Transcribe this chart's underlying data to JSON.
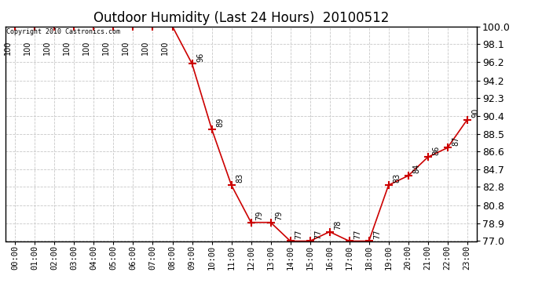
{
  "title": "Outdoor Humidity (Last 24 Hours)  20100512",
  "copyright": "Copyright 2010 Castronics.com",
  "x_labels": [
    "00:00",
    "01:00",
    "02:00",
    "03:00",
    "04:00",
    "05:00",
    "06:00",
    "07:00",
    "08:00",
    "09:00",
    "10:00",
    "11:00",
    "12:00",
    "13:00",
    "14:00",
    "15:00",
    "16:00",
    "17:00",
    "18:00",
    "19:00",
    "20:00",
    "21:00",
    "22:00",
    "23:00"
  ],
  "y_values": [
    100,
    100,
    100,
    100,
    100,
    100,
    100,
    100,
    100,
    96,
    89,
    83,
    79,
    79,
    77,
    77,
    78,
    77,
    77,
    83,
    84,
    86,
    87,
    90
  ],
  "ylim_min": 77.0,
  "ylim_max": 100.0,
  "y_ticks": [
    77.0,
    78.9,
    80.8,
    82.8,
    84.7,
    86.6,
    88.5,
    90.4,
    92.3,
    94.2,
    96.2,
    98.1,
    100.0
  ],
  "line_color": "#cc0000",
  "marker": "+",
  "marker_color": "#cc0000",
  "bg_color": "#ffffff",
  "grid_color": "#c8c8c8",
  "title_fontsize": 12,
  "label_fontsize": 7.5,
  "annotation_fontsize": 7,
  "ytick_fontsize": 9,
  "copyright_text": "Copyright 2010 Castronics.com",
  "annotations": {
    "0": {
      "val": 100,
      "xoff": -3,
      "yoff": -13,
      "rot": 90,
      "ha": "right",
      "va": "top"
    },
    "1": {
      "val": 100,
      "xoff": -3,
      "yoff": -13,
      "rot": 90,
      "ha": "right",
      "va": "top"
    },
    "2": {
      "val": 100,
      "xoff": -3,
      "yoff": -13,
      "rot": 90,
      "ha": "right",
      "va": "top"
    },
    "3": {
      "val": 100,
      "xoff": -3,
      "yoff": -13,
      "rot": 90,
      "ha": "right",
      "va": "top"
    },
    "4": {
      "val": 100,
      "xoff": -3,
      "yoff": -13,
      "rot": 90,
      "ha": "right",
      "va": "top"
    },
    "5": {
      "val": 100,
      "xoff": -3,
      "yoff": -13,
      "rot": 90,
      "ha": "right",
      "va": "top"
    },
    "6": {
      "val": 100,
      "xoff": -3,
      "yoff": -13,
      "rot": 90,
      "ha": "right",
      "va": "top"
    },
    "7": {
      "val": 100,
      "xoff": -3,
      "yoff": -13,
      "rot": 90,
      "ha": "right",
      "va": "top"
    },
    "8": {
      "val": 100,
      "xoff": -3,
      "yoff": -13,
      "rot": 90,
      "ha": "right",
      "va": "top"
    },
    "9": {
      "val": 96,
      "xoff": 4,
      "yoff": 2,
      "rot": 90,
      "ha": "left",
      "va": "bottom"
    },
    "10": {
      "val": 89,
      "xoff": 4,
      "yoff": 2,
      "rot": 90,
      "ha": "left",
      "va": "bottom"
    },
    "11": {
      "val": 83,
      "xoff": 4,
      "yoff": 2,
      "rot": 90,
      "ha": "left",
      "va": "bottom"
    },
    "12": {
      "val": 79,
      "xoff": 4,
      "yoff": 2,
      "rot": 90,
      "ha": "left",
      "va": "bottom"
    },
    "13": {
      "val": 79,
      "xoff": 4,
      "yoff": 2,
      "rot": 90,
      "ha": "left",
      "va": "bottom"
    },
    "14": {
      "val": 77,
      "xoff": 4,
      "yoff": 2,
      "rot": 90,
      "ha": "left",
      "va": "bottom"
    },
    "15": {
      "val": 77,
      "xoff": 4,
      "yoff": 2,
      "rot": 90,
      "ha": "left",
      "va": "bottom"
    },
    "16": {
      "val": 78,
      "xoff": 4,
      "yoff": 2,
      "rot": 90,
      "ha": "left",
      "va": "bottom"
    },
    "17": {
      "val": 77,
      "xoff": 4,
      "yoff": 2,
      "rot": 90,
      "ha": "left",
      "va": "bottom"
    },
    "18": {
      "val": 77,
      "xoff": 4,
      "yoff": 2,
      "rot": 90,
      "ha": "left",
      "va": "bottom"
    },
    "19": {
      "val": 83,
      "xoff": 4,
      "yoff": 2,
      "rot": 90,
      "ha": "left",
      "va": "bottom"
    },
    "20": {
      "val": 84,
      "xoff": 4,
      "yoff": 2,
      "rot": 90,
      "ha": "left",
      "va": "bottom"
    },
    "21": {
      "val": 86,
      "xoff": 4,
      "yoff": 2,
      "rot": 90,
      "ha": "left",
      "va": "bottom"
    },
    "22": {
      "val": 87,
      "xoff": 4,
      "yoff": 2,
      "rot": 90,
      "ha": "left",
      "va": "bottom"
    },
    "23": {
      "val": 90,
      "xoff": 4,
      "yoff": 2,
      "rot": 90,
      "ha": "left",
      "va": "bottom"
    }
  }
}
